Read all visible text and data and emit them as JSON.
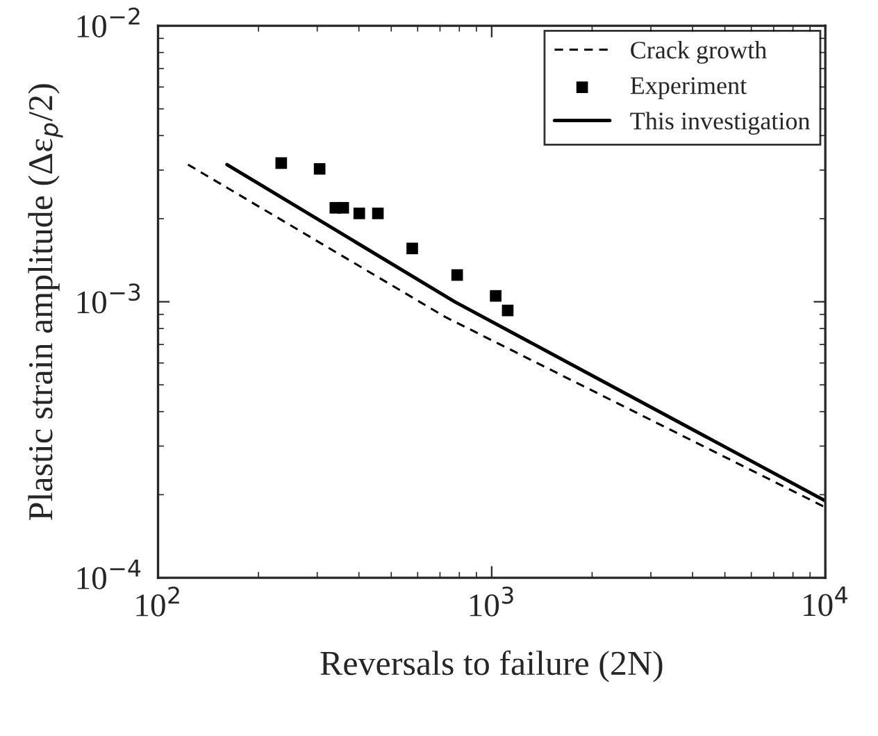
{
  "chart_data": {
    "type": "line",
    "xlabel": "Reversals to failure (2N)",
    "ylabel": "Plastic strain amplitude (Δε$_{p}$/2)",
    "log": "xy",
    "grid": false,
    "legend": "top right",
    "xlim": [
      100,
      10000
    ],
    "ylim": [
      0.0001,
      0.01
    ],
    "xticks": [
      {
        "value": 100,
        "label": "10$^{2}$"
      },
      {
        "value": 1000,
        "label": "10$^{3}$"
      },
      {
        "value": 10000,
        "label": "10$^{4}$"
      }
    ],
    "yticks": [
      {
        "value": 0.0001,
        "label": "10$^{−4}$"
      },
      {
        "value": 0.001,
        "label": "10$^{−3}$"
      },
      {
        "value": 0.01,
        "label": "10$^{−2}$"
      }
    ],
    "series": [
      {
        "name": "Crack growth",
        "line_style": "dashed",
        "marker": "none",
        "color": "#000000",
        "x": [
          123,
          727,
          10000
        ],
        "values": [
          0.00314,
          0.00088,
          0.00018
        ]
      },
      {
        "name": "Experiment",
        "type": "scatter",
        "marker": "square",
        "color": "#000000",
        "x": [
          234,
          305,
          340,
          359,
          401,
          456,
          578,
          788,
          1028,
          1117
        ],
        "values": [
          0.00318,
          0.00303,
          0.00219,
          0.00219,
          0.00209,
          0.00209,
          0.00156,
          0.00125,
          0.00105,
          0.00093
        ]
      },
      {
        "name": "This investigation",
        "line_style": "solid",
        "marker": "none",
        "color": "#000000",
        "x": [
          161,
          775,
          10000
        ],
        "values": [
          0.00314,
          0.001,
          0.00019
        ]
      }
    ]
  }
}
